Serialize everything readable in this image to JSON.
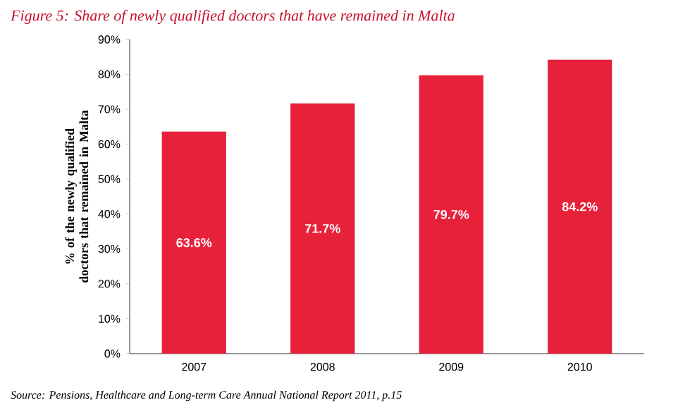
{
  "chart_data": {
    "type": "bar",
    "title": "Figure 5: Share of newly qualified doctors that have remained in Malta",
    "ylabel": "% of the newly qualified doctors that remained in Malta",
    "categories": [
      "2007",
      "2008",
      "2009",
      "2010"
    ],
    "values": [
      63.6,
      71.7,
      79.7,
      84.2
    ],
    "value_labels": [
      "63.6%",
      "71.7%",
      "79.7%",
      "84.2%"
    ],
    "color": "#e8213b",
    "ylim": [
      0,
      90
    ],
    "yticks": [
      {
        "value": 0,
        "label": "0%"
      },
      {
        "value": 10,
        "label": "10%"
      },
      {
        "value": 20,
        "label": "20%"
      },
      {
        "value": 30,
        "label": "30%"
      },
      {
        "value": 40,
        "label": "40%"
      },
      {
        "value": 50,
        "label": "50%"
      },
      {
        "value": 60,
        "label": "60%"
      },
      {
        "value": 70,
        "label": "70%"
      },
      {
        "value": 80,
        "label": "80%"
      },
      {
        "value": 90,
        "label": "90%"
      }
    ],
    "grid": false,
    "annotations": [
      "Source: Pensions, Healthcare and Long-term Care Annual National Report 2011, p.15"
    ]
  }
}
